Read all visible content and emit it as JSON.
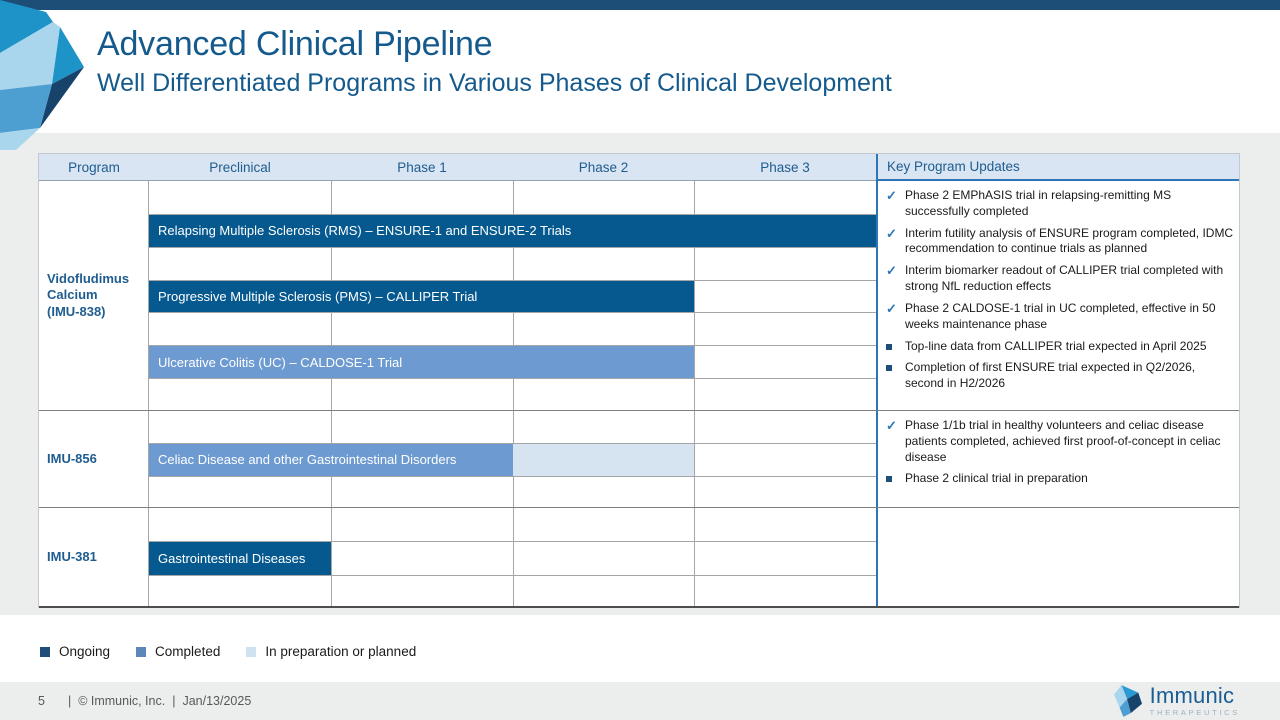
{
  "page": {
    "title": "Advanced Clinical Pipeline",
    "subtitle": "Well Differentiated Programs in Various Phases of Clinical Development"
  },
  "table": {
    "columns": [
      "Program",
      "Preclinical",
      "Phase 1",
      "Phase 2",
      "Phase 3",
      "Key Program Updates"
    ],
    "rows": [
      {
        "program": "Vidofludimus\nCalcium\n(IMU-838)",
        "subrows": 7,
        "bars": [
          {
            "label": "Relapsing Multiple Sclerosis (RMS) – ENSURE-1 and ENSURE-2 Trials",
            "status": "ongoing",
            "col_start": 1,
            "col_end": 4,
            "slot": 1
          },
          {
            "label": "Progressive Multiple Sclerosis (PMS) – CALLIPER Trial",
            "status": "ongoing",
            "col_start": 1,
            "col_end": 3,
            "slot": 3
          },
          {
            "label": "Ulcerative Colitis (UC) – CALDOSE-1 Trial",
            "status": "completed",
            "col_start": 1,
            "col_end": 3,
            "slot": 5
          }
        ],
        "updates": [
          {
            "marker": "check",
            "text": "Phase 2 EMPhASIS trial in relapsing-remitting MS successfully completed"
          },
          {
            "marker": "check",
            "text": "Interim futility analysis of ENSURE program completed, IDMC recommendation to continue trials as planned"
          },
          {
            "marker": "check",
            "text": "Interim biomarker readout of CALLIPER trial completed with strong NfL reduction effects"
          },
          {
            "marker": "check",
            "text": "Phase 2 CALDOSE-1 trial in UC completed, effective in 50 weeks maintenance phase"
          },
          {
            "marker": "square",
            "text": "Top-line data from CALLIPER trial expected in April 2025"
          },
          {
            "marker": "square",
            "text": "Completion of first ENSURE trial expected in Q2/2026, second in H2/2026"
          }
        ]
      },
      {
        "program": "IMU-856",
        "subrows": 3,
        "bars": [
          {
            "label": "Celiac Disease and other Gastrointestinal Disorders",
            "status": "completed",
            "col_start": 1,
            "col_end": 2,
            "slot": 1
          },
          {
            "label": "",
            "status": "planned",
            "col_start": 3,
            "col_end": 3,
            "slot": 1
          }
        ],
        "updates": [
          {
            "marker": "check",
            "text": "Phase 1/1b trial in healthy volunteers and celiac disease patients completed, achieved first proof-of-concept in celiac disease"
          },
          {
            "marker": "square",
            "text": "Phase 2 clinical trial in preparation"
          }
        ]
      },
      {
        "program": "IMU-381",
        "subrows": 3,
        "bars": [
          {
            "label": "Gastrointestinal Diseases",
            "status": "ongoing",
            "col_start": 1,
            "col_end": 1,
            "slot": 1
          }
        ],
        "updates": []
      }
    ]
  },
  "legend": {
    "items": [
      {
        "label": "Ongoing",
        "status": "ongoing"
      },
      {
        "label": "Completed",
        "status": "completed"
      },
      {
        "label": "In preparation or planned",
        "status": "planned"
      }
    ]
  },
  "footer": {
    "page_number": "5",
    "separator": "|",
    "copyright": "© Immunic, Inc.",
    "date": "Jan/13/2025"
  },
  "brand": {
    "name": "Immunic",
    "tagline": "THERAPEUTICS"
  },
  "colors": {
    "ongoing": "#06598f",
    "completed": "#6d9bd1",
    "planned": "#d6e4f2",
    "legend_ongoing": "#1f4e79",
    "legend_completed": "#5b88b8",
    "legend_planned": "#cfe2f1",
    "accent_divider": "#2e75b6",
    "header_bg": "#d9e5f2",
    "heading_text": "#155a8d",
    "top_bar": "#1d4e77"
  }
}
